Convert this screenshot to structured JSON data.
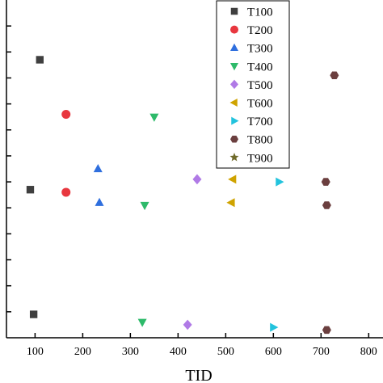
{
  "chart_data": {
    "type": "scatter",
    "xlabel": "TID",
    "ylabel": "",
    "title": "",
    "xlim": [
      40,
      830
    ],
    "ylim": [
      0,
      13
    ],
    "x_ticks": [
      100,
      200,
      300,
      400,
      500,
      600,
      700,
      800
    ],
    "x_tick_labels": [
      "100",
      "200",
      "300",
      "400",
      "500",
      "600",
      "700",
      "800"
    ],
    "y_ticks": [
      1,
      2,
      3,
      4,
      5,
      6,
      7,
      8,
      9,
      10,
      11,
      12
    ],
    "grid": false,
    "legend_position": "top-right",
    "series": [
      {
        "name": "T100",
        "marker": "square",
        "color": "#3f3f3f",
        "points": [
          [
            110,
            10.7
          ],
          [
            90,
            5.7
          ],
          [
            97,
            0.9
          ]
        ]
      },
      {
        "name": "T200",
        "marker": "circle",
        "color": "#e8373f",
        "points": [
          [
            165,
            8.6
          ],
          [
            165,
            5.6
          ]
        ]
      },
      {
        "name": "T300",
        "marker": "triangle-up",
        "color": "#2f6fde",
        "points": [
          [
            232,
            6.5
          ],
          [
            235,
            5.2
          ]
        ]
      },
      {
        "name": "T400",
        "marker": "triangle-down",
        "color": "#2dba6a",
        "points": [
          [
            350,
            8.5
          ],
          [
            330,
            5.1
          ],
          [
            325,
            0.6
          ]
        ]
      },
      {
        "name": "T500",
        "marker": "diamond",
        "color": "#b07ae6",
        "points": [
          [
            440,
            6.1
          ],
          [
            420,
            0.5
          ]
        ]
      },
      {
        "name": "T600",
        "marker": "triangle-left",
        "color": "#cfa300",
        "points": [
          [
            515,
            6.1
          ],
          [
            512,
            5.2
          ]
        ]
      },
      {
        "name": "T700",
        "marker": "triangle-right",
        "color": "#22c3dd",
        "points": [
          [
            612,
            6.0
          ],
          [
            600,
            0.4
          ]
        ]
      },
      {
        "name": "T800",
        "marker": "hexagon",
        "color": "#6b3f3f",
        "points": [
          [
            728,
            10.1
          ],
          [
            710,
            6.0
          ],
          [
            712,
            5.1
          ],
          [
            712,
            0.3
          ]
        ]
      },
      {
        "name": "T900",
        "marker": "star",
        "color": "#6f6a2a",
        "points": []
      }
    ]
  }
}
